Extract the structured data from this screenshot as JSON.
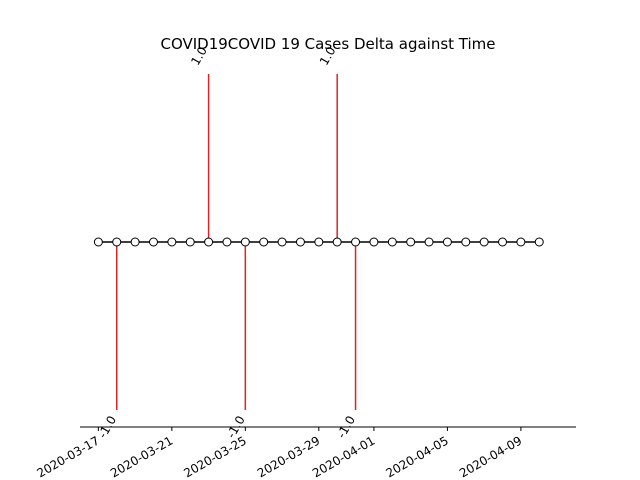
{
  "chart_data": {
    "type": "timeline",
    "title": "COVID19COVID 19 Cases Delta against Time",
    "x_ticks": [
      "2020-03-17",
      "2020-03-21",
      "2020-03-25",
      "2020-03-29",
      "2020-04-01",
      "2020-04-05",
      "2020-04-09"
    ],
    "xlim": [
      "2020-03-16",
      "2020-04-12"
    ],
    "ylim": [
      -1,
      1
    ],
    "colors": {
      "stem": "#d62728",
      "line": "#000000",
      "marker_face": "#ffffff"
    },
    "dates": [
      "2020-03-17",
      "2020-03-18",
      "2020-03-19",
      "2020-03-20",
      "2020-03-21",
      "2020-03-22",
      "2020-03-23",
      "2020-03-24",
      "2020-03-25",
      "2020-03-26",
      "2020-03-27",
      "2020-03-28",
      "2020-03-29",
      "2020-03-30",
      "2020-03-31",
      "2020-04-01",
      "2020-04-02",
      "2020-04-03",
      "2020-04-04",
      "2020-04-05",
      "2020-04-06",
      "2020-04-07",
      "2020-04-08",
      "2020-04-09",
      "2020-04-10"
    ],
    "events": [
      {
        "date": "2020-03-18",
        "value": -1.0,
        "label": "-1.0"
      },
      {
        "date": "2020-03-23",
        "value": 1.0,
        "label": "1.0"
      },
      {
        "date": "2020-03-25",
        "value": -1.0,
        "label": "-1.0"
      },
      {
        "date": "2020-03-30",
        "value": 1.0,
        "label": "1.0"
      },
      {
        "date": "2020-03-31",
        "value": -1.0,
        "label": "-1.0"
      }
    ]
  }
}
